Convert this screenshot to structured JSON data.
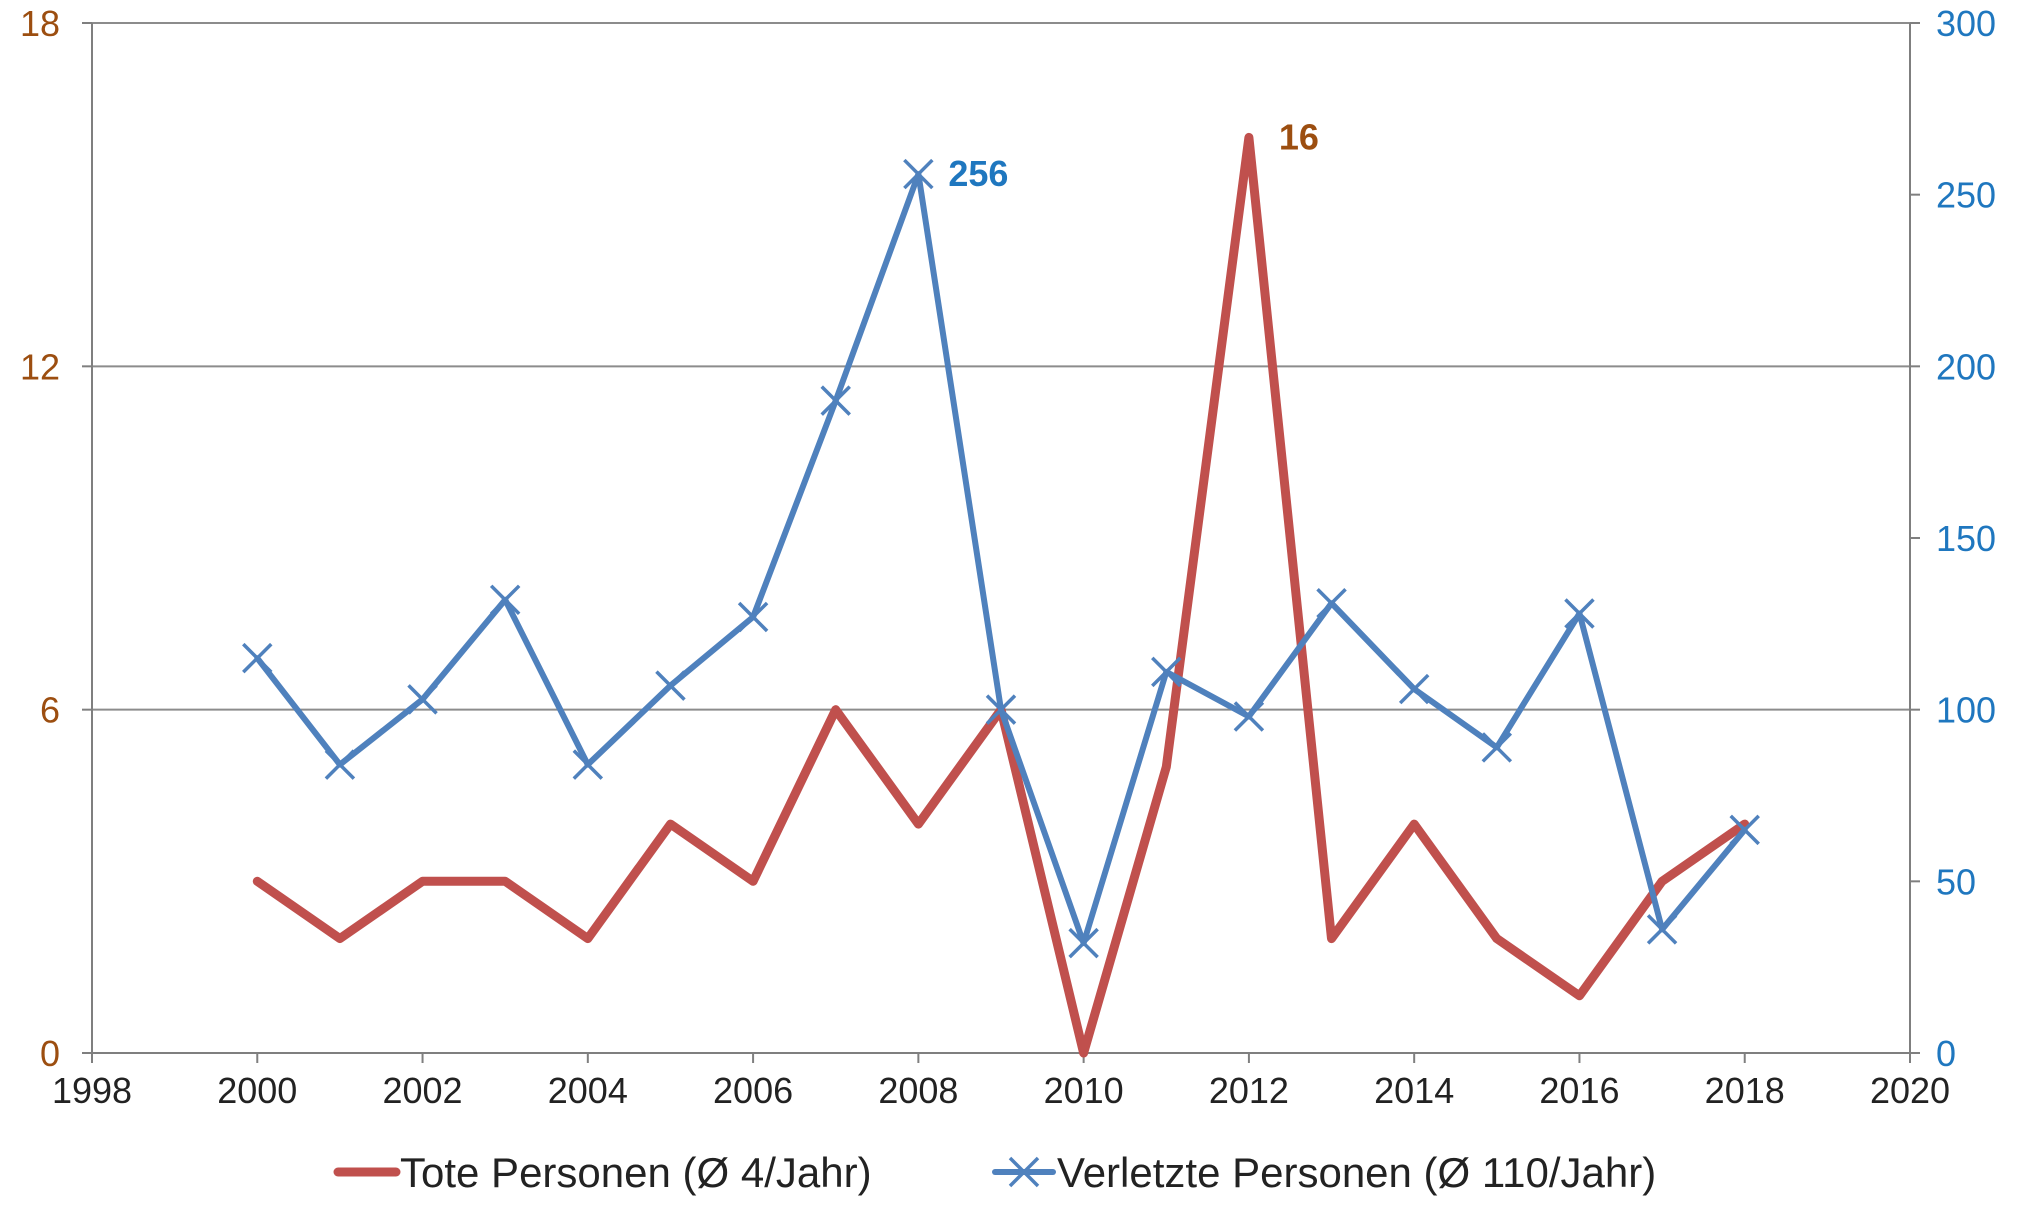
{
  "chart_data": {
    "type": "line",
    "x": [
      2000,
      2001,
      2002,
      2003,
      2004,
      2005,
      2006,
      2007,
      2008,
      2009,
      2010,
      2011,
      2012,
      2013,
      2014,
      2015,
      2016,
      2017,
      2018
    ],
    "xlim": [
      1998,
      2020
    ],
    "x_ticks": [
      "1998",
      "2000",
      "2002",
      "2004",
      "2006",
      "2008",
      "2010",
      "2012",
      "2014",
      "2016",
      "2018",
      "2020"
    ],
    "y_left": {
      "lim": [
        0,
        18
      ],
      "ticks": [
        "0",
        "6",
        "12",
        "18"
      ],
      "color": "#9C4E10"
    },
    "y_right": {
      "lim": [
        0,
        300
      ],
      "ticks": [
        "0",
        "50",
        "100",
        "150",
        "200",
        "250",
        "300"
      ],
      "color": "#1F77BF"
    },
    "grid": "horizontal",
    "legend_position": "bottom",
    "series": [
      {
        "name": "Tote Personen (Ø 4/Jahr)",
        "axis": "left",
        "color": "#C0504D",
        "marker": "none",
        "values": [
          3,
          2,
          3,
          3,
          2,
          4,
          3,
          6,
          4,
          6,
          0,
          5,
          16,
          2,
          4,
          2,
          1,
          3,
          4
        ]
      },
      {
        "name": "Verletzte Personen (Ø 110/Jahr)",
        "axis": "right",
        "color": "#4F81BD",
        "marker": "x",
        "values": [
          115,
          84,
          103,
          132,
          84,
          107,
          127,
          190,
          256,
          100,
          32,
          111,
          98,
          131,
          106,
          89,
          128,
          36,
          65
        ]
      }
    ],
    "annotations": [
      {
        "series": 1,
        "x": 2008,
        "text": "256",
        "color": "#1F77BF"
      },
      {
        "series": 0,
        "x": 2012,
        "text": "16",
        "color": "#9C4E10"
      }
    ]
  }
}
